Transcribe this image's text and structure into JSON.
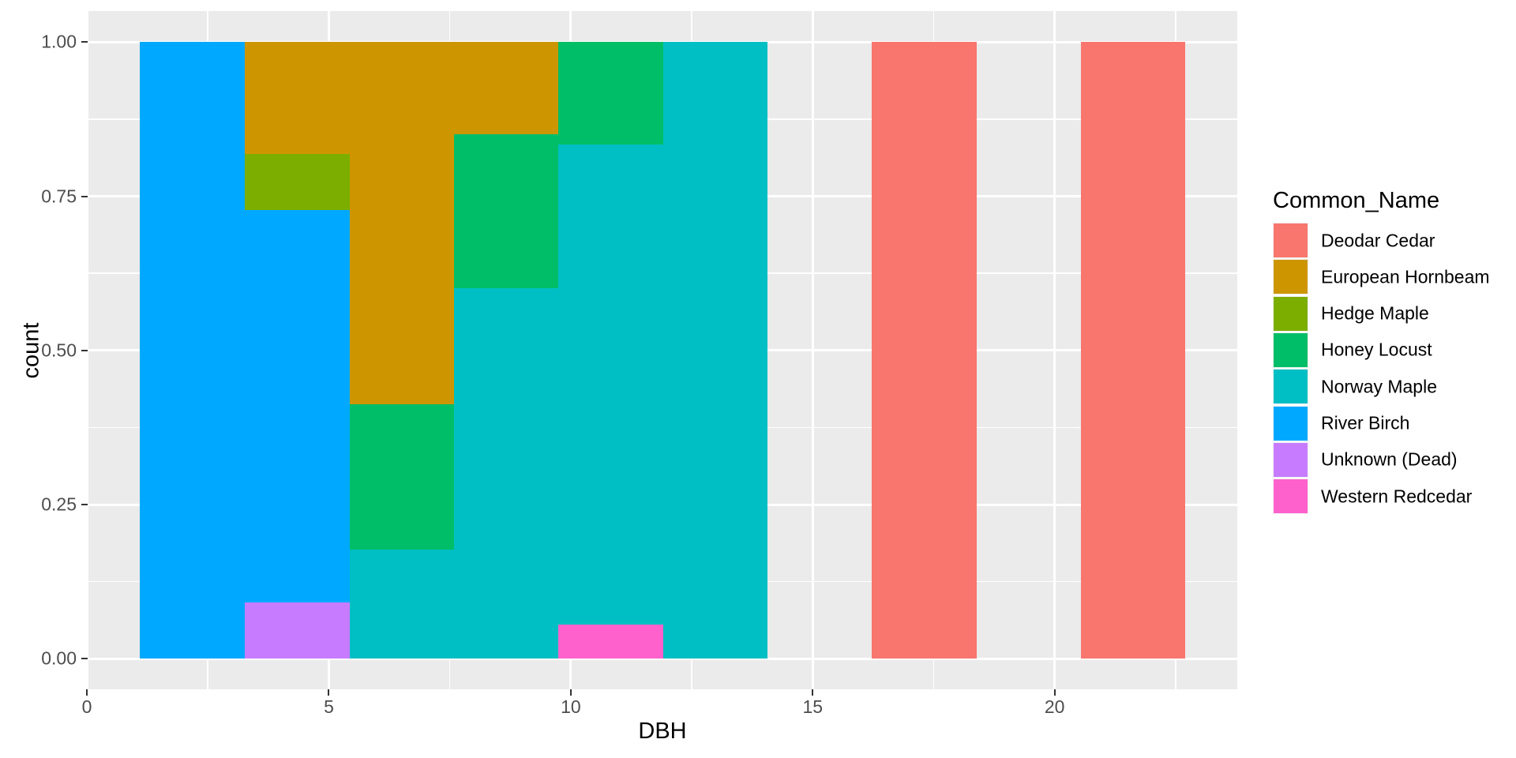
{
  "chart_data": {
    "type": "bar",
    "variant": "stacked-filled-histogram",
    "title": "",
    "xlabel": "DBH",
    "ylabel": "count",
    "legend_title": "Common_Name",
    "legend_position": "right",
    "grid": true,
    "colors": {
      "panel_background": "#EBEBEB",
      "paper_background": "#FFFFFF",
      "gridline": "#FFFFFF",
      "axis_text": "#4D4D4D",
      "tick_mark": "#333333"
    },
    "x_domain": [
      0.01,
      23.78
    ],
    "y_domain": [
      -0.05,
      1.05
    ],
    "x_tick_values": [
      0,
      5,
      10,
      15,
      20
    ],
    "x_tick_labels": [
      "0",
      "5",
      "10",
      "15",
      "20"
    ],
    "x_minor_values": [
      2.5,
      7.5,
      12.5,
      17.5,
      22.5
    ],
    "y_tick_values": [
      0,
      0.25,
      0.5,
      0.75,
      1
    ],
    "y_tick_labels": [
      "0.00",
      "0.25",
      "0.50",
      "0.75",
      "1.00"
    ],
    "y_minor_values": [
      0.125,
      0.375,
      0.625,
      0.875
    ],
    "series_colors": {
      "Deodar Cedar": "#F8766D",
      "European Hornbeam": "#CD9600",
      "Hedge Maple": "#7CAE00",
      "Honey Locust": "#00BE67",
      "Norway Maple": "#00BFC4",
      "River Birch": "#00A9FF",
      "Unknown (Dead)": "#C77CFF",
      "Western Redcedar": "#FF61CC"
    },
    "legend_items": [
      "Deodar Cedar",
      "European Hornbeam",
      "Hedge Maple",
      "Honey Locust",
      "Norway Maple",
      "River Birch",
      "Unknown (Dead)",
      "Western Redcedar"
    ],
    "bars": [
      {
        "x0": 1.09,
        "x1": 3.26,
        "dbh_range": "1.1-3.2",
        "segments": [
          {
            "species": "River Birch",
            "from": 0,
            "to": 1
          }
        ]
      },
      {
        "x0": 3.26,
        "x1": 5.42,
        "dbh_range": "3.2-5.4",
        "segments": [
          {
            "species": "Unknown (Dead)",
            "from": 0,
            "to": 0.0909
          },
          {
            "species": "River Birch",
            "from": 0.0909,
            "to": 0.7273
          },
          {
            "species": "Hedge Maple",
            "from": 0.7273,
            "to": 0.8182
          },
          {
            "species": "European Hornbeam",
            "from": 0.8182,
            "to": 1
          }
        ]
      },
      {
        "x0": 5.42,
        "x1": 7.58,
        "dbh_range": "5.4-7.6",
        "segments": [
          {
            "species": "Norway Maple",
            "from": 0,
            "to": 0.1765
          },
          {
            "species": "Honey Locust",
            "from": 0.1765,
            "to": 0.4118
          },
          {
            "species": "European Hornbeam",
            "from": 0.4118,
            "to": 1
          }
        ]
      },
      {
        "x0": 7.58,
        "x1": 9.74,
        "dbh_range": "7.6-9.7",
        "segments": [
          {
            "species": "Norway Maple",
            "from": 0,
            "to": 0.6
          },
          {
            "species": "Honey Locust",
            "from": 0.6,
            "to": 0.85
          },
          {
            "species": "European Hornbeam",
            "from": 0.85,
            "to": 1
          }
        ]
      },
      {
        "x0": 9.74,
        "x1": 11.9,
        "dbh_range": "9.7-11.9",
        "segments": [
          {
            "species": "Western Redcedar",
            "from": 0,
            "to": 0.0556
          },
          {
            "species": "Norway Maple",
            "from": 0.0556,
            "to": 0.8333
          },
          {
            "species": "Honey Locust",
            "from": 0.8333,
            "to": 1
          }
        ]
      },
      {
        "x0": 11.9,
        "x1": 14.06,
        "dbh_range": "11.9-14.1",
        "segments": [
          {
            "species": "Norway Maple",
            "from": 0,
            "to": 1
          }
        ]
      },
      {
        "x0": 16.22,
        "x1": 18.38,
        "dbh_range": "16.2-18.4",
        "segments": [
          {
            "species": "Deodar Cedar",
            "from": 0,
            "to": 1
          }
        ]
      },
      {
        "x0": 20.54,
        "x1": 22.7,
        "dbh_range": "20.5-22.7",
        "segments": [
          {
            "species": "Deodar Cedar",
            "from": 0,
            "to": 1
          }
        ]
      }
    ]
  }
}
